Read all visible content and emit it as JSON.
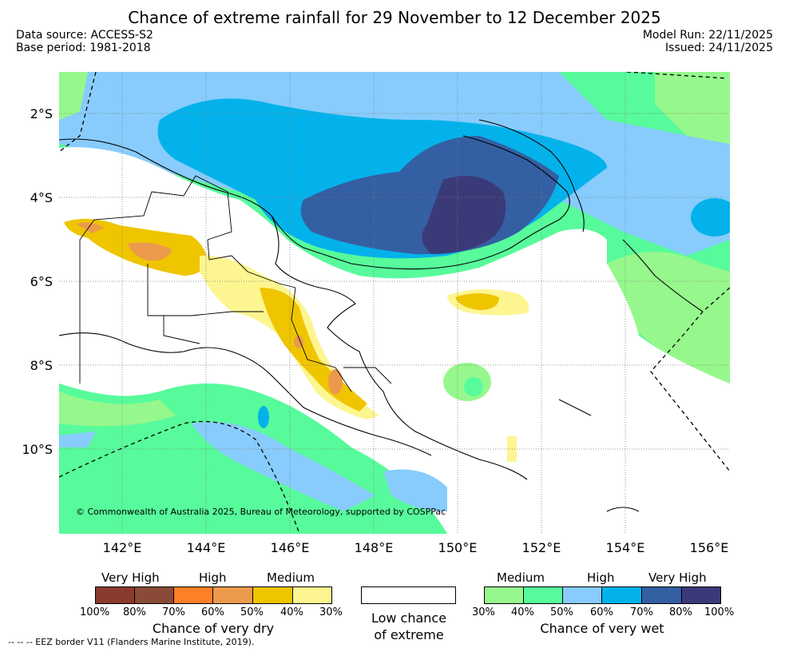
{
  "header": {
    "title": "Chance of extreme rainfall for 29 November to 12 December 2025",
    "data_source": "Data source: ACCESS-S2",
    "base_period": "Base period: 1981-2018",
    "model_run": "Model Run: 22/11/2025",
    "issued": "Issued: 24/11/2025"
  },
  "map": {
    "lat_labels": [
      "2°S",
      "4°S",
      "6°S",
      "8°S",
      "10°S"
    ],
    "lon_labels": [
      "142°E",
      "144°E",
      "146°E",
      "148°E",
      "150°E",
      "152°E",
      "154°E",
      "156°E"
    ],
    "copyright": "© Commonwealth of Australia 2025, Bureau of Meteorology, supported by COSPPac",
    "ocean_wet_colors": [
      "#96f88c",
      "#57fb9b",
      "#87ccfc",
      "#04b2eb",
      "#345fa2",
      "#3b3a79"
    ],
    "dry_colors": [
      "#fdf590",
      "#efc500",
      "#eb9a4c",
      "#fe7f27"
    ]
  },
  "legend": {
    "dry": {
      "levels": [
        "Very High",
        "High",
        "Medium"
      ],
      "ticks": [
        "100%",
        "80%",
        "70%",
        "60%",
        "50%",
        "40%",
        "30%"
      ],
      "caption": "Chance of very dry",
      "colors": [
        "#8b3a2e",
        "#8a4a38",
        "#fe7f27",
        "#eb9a4c",
        "#efc500",
        "#fdf590"
      ]
    },
    "neutral": {
      "caption_line1": "Low chance",
      "caption_line2": "of extreme"
    },
    "wet": {
      "levels": [
        "Medium",
        "High",
        "Very High"
      ],
      "ticks": [
        "30%",
        "40%",
        "50%",
        "60%",
        "70%",
        "80%",
        "100%"
      ],
      "caption": "Chance of very wet",
      "colors": [
        "#96f88c",
        "#57fb9b",
        "#87ccfc",
        "#04b2eb",
        "#345fa2",
        "#3b3a79"
      ]
    },
    "eez_note": "--  --  -- EEZ border V11 (Flanders Marine Institute, 2019)."
  }
}
